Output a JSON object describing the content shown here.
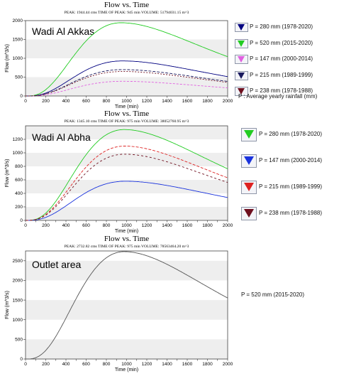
{
  "chart_data": [
    {
      "type": "line",
      "title": "Flow vs. Time",
      "subtitle": "PEAK: 1944.44 cms   TIME OF PEAK: 945 min   VOLUME: 51794031.15 m^3",
      "region_label": "Wadi Al Akkas",
      "xlabel": "Time (min)",
      "ylabel": "Flow (m^3/s)",
      "xlim": [
        0,
        2000
      ],
      "ylim": [
        0,
        2000
      ],
      "x_ticks": [
        0,
        200,
        400,
        600,
        800,
        1000,
        1200,
        1400,
        1600,
        1800,
        2000
      ],
      "y_ticks": [
        0,
        500,
        1000,
        1500,
        2000
      ],
      "grid": "horizontal bands",
      "legend_position": "right",
      "series": [
        {
          "name": "P = 280 mm (1978-2020)",
          "color": "#000080",
          "peak": 930,
          "peak_time": 960
        },
        {
          "name": "P = 520 mm (2015-2020)",
          "color": "#22cc22",
          "peak": 1944,
          "peak_time": 945
        },
        {
          "name": "P = 147 mm (2000-2014)",
          "color": "#e060e0",
          "peak": 390,
          "peak_time": 960
        },
        {
          "name": "P = 215 mm (1989-1999)",
          "color": "#1a1a5e",
          "peak": 700,
          "peak_time": 960
        },
        {
          "name": "P = 238 mm (1978-1988)",
          "color": "#6e0f1f",
          "peak": 650,
          "peak_time": 960
        }
      ],
      "legend_note": "P : Average yearly rainfall (mm)"
    },
    {
      "type": "line",
      "title": "Flow vs. Time",
      "subtitle": "PEAK: 1345.10 cms   TIME OF PEAK: 975 min   VOLUME: 38052760.95 m^3",
      "region_label": "Wadi Al Abha",
      "xlabel": "Time (min)",
      "ylabel": "Flow (m^3/s)",
      "xlim": [
        0,
        2000
      ],
      "ylim": [
        0,
        1400
      ],
      "x_ticks": [
        0,
        100,
        200,
        300,
        400,
        500,
        600,
        700,
        800,
        900,
        1000,
        1100,
        1200,
        1300,
        1400,
        1500,
        1600,
        1700,
        1800,
        1900,
        2000
      ],
      "x_tick_labels": [
        0,
        200,
        400,
        600,
        800,
        1000,
        1200,
        1400,
        1600,
        1800,
        2000
      ],
      "y_ticks": [
        0,
        200,
        400,
        600,
        800,
        1000,
        1200
      ],
      "grid": "horizontal bands",
      "legend_position": "right",
      "series": [
        {
          "name": "P = 280 mm (1978-2020)",
          "color": "#22cc22",
          "peak": 1345,
          "peak_time": 975
        },
        {
          "name": "P = 147 mm (2000-2014)",
          "color": "#1a33dd",
          "peak": 580,
          "peak_time": 990
        },
        {
          "name": "P = 215 mm (1989-1999)",
          "color": "#dd2222",
          "peak": 1100,
          "peak_time": 980
        },
        {
          "name": "P = 238 mm (1978-1988)",
          "color": "#6e0f1f",
          "peak": 980,
          "peak_time": 980
        }
      ]
    },
    {
      "type": "line",
      "title": "Flow vs. Time",
      "subtitle": "PEAK: 2732.82 cms   TIME OF PEAK: 975 min   VOLUME: 78563464.20 m^3",
      "region_label": "Outlet area",
      "xlabel": "Time (min)",
      "ylabel": "Flow (m^3/s)",
      "xlim": [
        0,
        2000
      ],
      "ylim": [
        0,
        2750
      ],
      "x_ticks": [
        0,
        100,
        200,
        300,
        400,
        500,
        600,
        700,
        800,
        900,
        1000,
        1100,
        1200,
        1300,
        1400,
        1500,
        1600,
        1700,
        1800,
        1900,
        2000
      ],
      "x_tick_labels": [
        0,
        200,
        400,
        600,
        800,
        1000,
        1200,
        1400,
        1600,
        1800,
        2000
      ],
      "y_ticks": [
        0,
        500,
        1000,
        1500,
        2000,
        2500
      ],
      "grid": "horizontal bands",
      "legend_position": "right",
      "series": [
        {
          "name": "P = 520 mm (2015-2020)",
          "color": "#555555",
          "peak": 2733,
          "peak_time": 975
        }
      ]
    }
  ]
}
